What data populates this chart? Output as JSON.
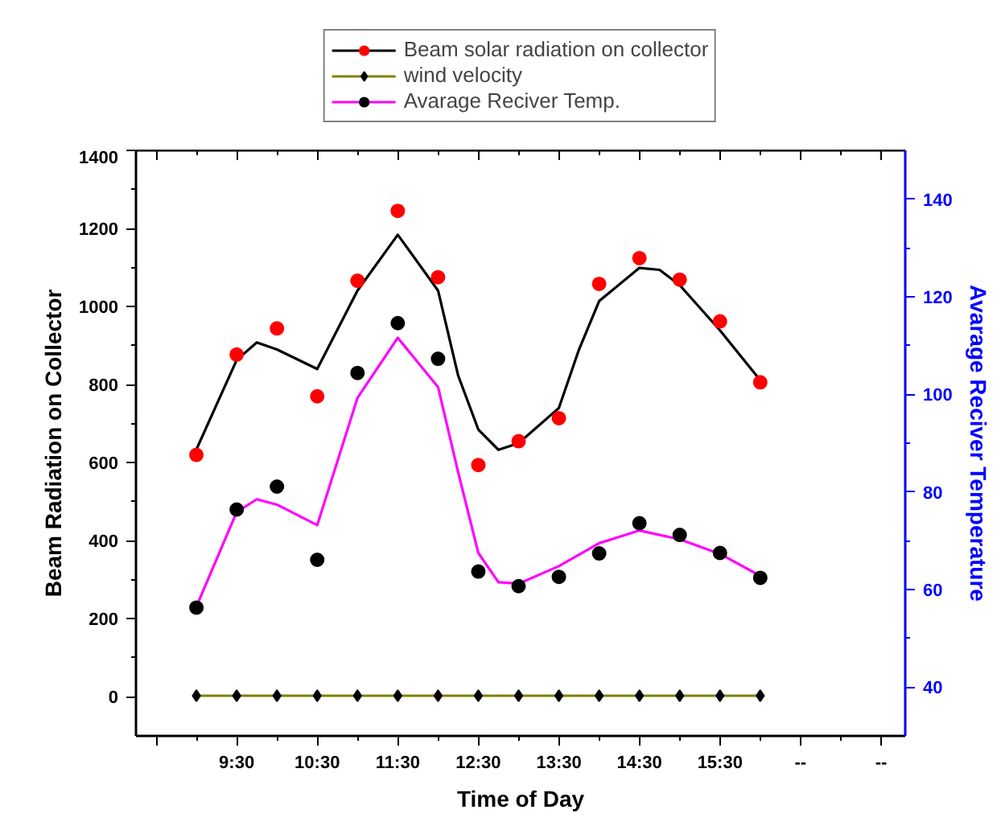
{
  "chart_data": {
    "type": "scatter",
    "xlabel": "Time of Day",
    "ylabel": "Beam Radiation on Collector",
    "y2label": "Avarage Reciver Temperature",
    "x": [
      9,
      9.5,
      10,
      10.5,
      11,
      11.5,
      12,
      12.5,
      13,
      13.5,
      14,
      14.5,
      15,
      15.5,
      16
    ],
    "xlim": [
      8.25,
      17.8
    ],
    "xticks": [
      {
        "value": 8.5,
        "label": null
      },
      {
        "value": 9.5,
        "label": "9:30"
      },
      {
        "value": 10.5,
        "label": "10:30"
      },
      {
        "value": 11.5,
        "label": "11:30"
      },
      {
        "value": 12.5,
        "label": "12:30"
      },
      {
        "value": 13.5,
        "label": "13:30"
      },
      {
        "value": 14.5,
        "label": "14:30"
      },
      {
        "value": 15.5,
        "label": "15:30"
      },
      {
        "value": 16.5,
        "label": "--"
      },
      {
        "value": 17.5,
        "label": "--"
      }
    ],
    "ylim": [
      -100,
      1400
    ],
    "yticks": [
      0,
      200,
      400,
      600,
      800,
      1000,
      1200,
      1400
    ],
    "y2lim": [
      30,
      150
    ],
    "y2ticks": [
      40,
      60,
      80,
      100,
      120,
      140
    ],
    "grid": false,
    "legend": "top",
    "series": [
      {
        "name": "Beam solar radiation on collector",
        "type": "scatter",
        "marker": "circle",
        "color": "#ff0000",
        "values": [
          620,
          877,
          944,
          770,
          1066,
          1245,
          1075,
          594,
          655,
          714,
          1058,
          1124,
          1069,
          962,
          806
        ]
      },
      {
        "type": "line",
        "color": "#000000",
        "x": [
          9,
          9.5,
          9.75,
          10,
          10.5,
          11,
          11.5,
          12,
          12.25,
          12.5,
          12.75,
          13,
          13.5,
          13.75,
          14,
          14.5,
          14.75,
          15,
          15.5,
          16
        ],
        "values": [
          634,
          863,
          908,
          890,
          840,
          1041,
          1184,
          1041,
          823,
          685,
          633,
          650,
          740,
          890,
          1014,
          1099,
          1094,
          1055,
          939,
          811
        ]
      },
      {
        "name": "wind velocity",
        "type": "scatter",
        "marker": "diamond",
        "color": "#000000",
        "values": [
          3,
          3,
          3,
          3,
          3,
          3,
          3,
          3,
          3,
          3,
          3,
          3,
          3,
          3,
          3
        ]
      },
      {
        "type": "line",
        "color": "#808000",
        "values": [
          3,
          3,
          3,
          3,
          3,
          3,
          3,
          3,
          3,
          3,
          3,
          3,
          3,
          3,
          3
        ]
      },
      {
        "name": "Avarage Reciver Temp.",
        "type": "scatter",
        "marker": "circle",
        "color": "#000000",
        "axis": "y2",
        "values": [
          56.3,
          76.4,
          81.1,
          66.1,
          104.4,
          114.6,
          107.3,
          63.7,
          60.7,
          62.6,
          67.4,
          73.6,
          71.2,
          67.5,
          62.4
        ]
      },
      {
        "type": "line",
        "color": "#ff00ff",
        "axis": "y2",
        "x": [
          9,
          9.5,
          9.75,
          10,
          10.5,
          11,
          11.5,
          12,
          12.25,
          12.5,
          12.75,
          13,
          13.5,
          14,
          14.5,
          15,
          15.5,
          16
        ],
        "values": [
          56.5,
          75.9,
          78.5,
          77.4,
          73.2,
          99.3,
          111.6,
          101.5,
          84,
          67.5,
          61.5,
          61.2,
          64.8,
          69.5,
          72.1,
          70.3,
          67.3,
          62.8
        ]
      }
    ]
  }
}
